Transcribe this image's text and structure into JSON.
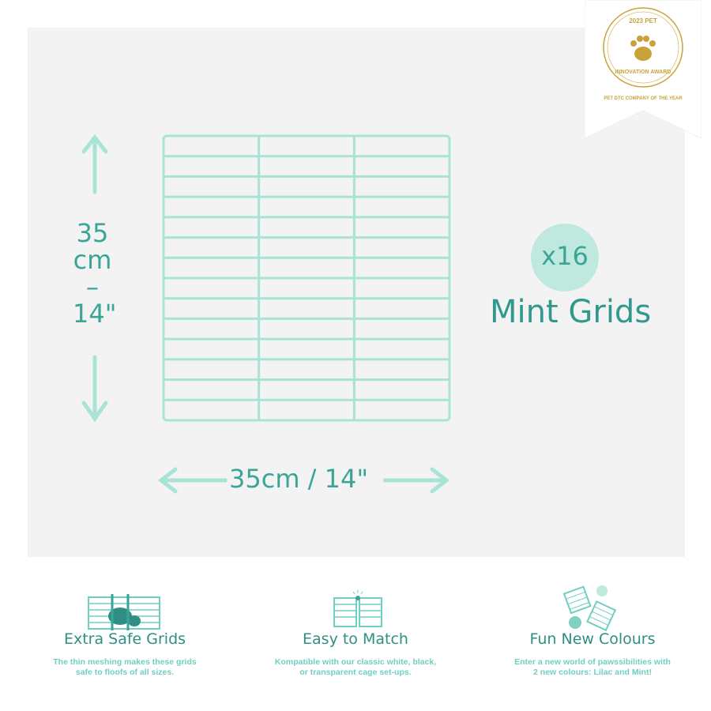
{
  "colors": {
    "mint": "#a8e3d6",
    "teal": "#3aa596",
    "gold": "#c9a33a"
  },
  "dimensions": {
    "height_cm": "35",
    "height_unit": "cm",
    "height_in": "14\"",
    "width_label": "35cm / 14\""
  },
  "quantity": {
    "count": "x16",
    "label": "Mint Grids"
  },
  "award": {
    "arc_top": "2023 PET",
    "arc_bottom": "INNOVATION AWARD",
    "subtitle": "PET DTC COMPANY OF THE YEAR",
    "icon": "paw-icon"
  },
  "features": [
    {
      "title": "Extra Safe Grids",
      "text_line1": "The thin meshing makes these grids",
      "text_line2": "safe to floofs of all sizes.",
      "icon": "guinea-pig-grid-icon"
    },
    {
      "title": "Easy to Match",
      "text_line1": "Kompatible with our classic white, black,",
      "text_line2": "or transparent cage set-ups.",
      "icon": "connected-grids-icon"
    },
    {
      "title": "Fun New Colours",
      "text_line1": "Enter a new world of pawssibilities with",
      "text_line2": "2 new colours: Lilac and Mint!",
      "icon": "two-colours-icon"
    }
  ]
}
